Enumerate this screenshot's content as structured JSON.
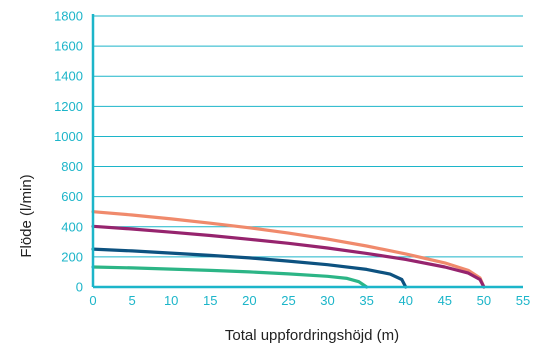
{
  "chart_data": {
    "type": "line",
    "title": "",
    "xlabel": "Total uppfordringshöjd (m)",
    "ylabel": "Flöde (l/min)",
    "xlim": [
      0,
      55
    ],
    "ylim": [
      0,
      1800
    ],
    "xticks": [
      "0",
      "5",
      "10",
      "15",
      "20",
      "25",
      "30",
      "35",
      "40",
      "45",
      "50",
      "55"
    ],
    "yticks": [
      "0",
      "200",
      "400",
      "600",
      "800",
      "1000",
      "1200",
      "1400",
      "1600",
      "1800"
    ],
    "grid": true,
    "legend": "none",
    "series": [
      {
        "color": "#f08a6c",
        "points": [
          [
            0,
            500
          ],
          [
            5,
            478
          ],
          [
            10,
            452
          ],
          [
            15,
            424
          ],
          [
            20,
            393
          ],
          [
            25,
            358
          ],
          [
            30,
            318
          ],
          [
            35,
            272
          ],
          [
            40,
            220
          ],
          [
            45,
            160
          ],
          [
            48,
            110
          ],
          [
            49.5,
            60
          ],
          [
            50,
            0
          ]
        ]
      },
      {
        "color": "#96246e",
        "points": [
          [
            0,
            403
          ],
          [
            5,
            385
          ],
          [
            10,
            364
          ],
          [
            15,
            342
          ],
          [
            20,
            317
          ],
          [
            25,
            290
          ],
          [
            30,
            259
          ],
          [
            35,
            223
          ],
          [
            40,
            183
          ],
          [
            45,
            133
          ],
          [
            48,
            92
          ],
          [
            49.5,
            50
          ],
          [
            50,
            0
          ]
        ]
      },
      {
        "color": "#0d5280",
        "points": [
          [
            0,
            252
          ],
          [
            5,
            240
          ],
          [
            10,
            225
          ],
          [
            15,
            210
          ],
          [
            20,
            193
          ],
          [
            25,
            172
          ],
          [
            30,
            148
          ],
          [
            35,
            117
          ],
          [
            38,
            86
          ],
          [
            39.5,
            50
          ],
          [
            40,
            0
          ]
        ]
      },
      {
        "color": "#2cb586",
        "points": [
          [
            0,
            133
          ],
          [
            5,
            127
          ],
          [
            10,
            119
          ],
          [
            15,
            110
          ],
          [
            20,
            100
          ],
          [
            25,
            87
          ],
          [
            30,
            71
          ],
          [
            32.5,
            57
          ],
          [
            34,
            35
          ],
          [
            35,
            0
          ]
        ]
      }
    ]
  },
  "colors": {
    "axis": "#1cb5c9",
    "grid": "#1cb5c9",
    "tick_text": "#1cb5c9",
    "title_text": "#222222"
  }
}
